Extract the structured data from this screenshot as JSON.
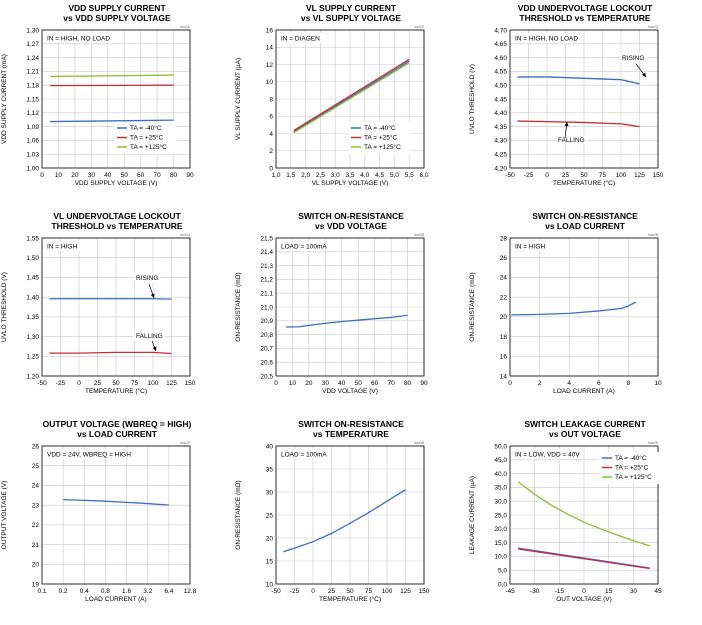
{
  "chart_data": [
    {
      "id": "toc01",
      "type": "line",
      "title": [
        "VDD SUPPLY CURRENT",
        "vs VDD SUPPLY VOLTAGE"
      ],
      "xlabel": "VDD SUPPLY VOLTAGE (V)",
      "ylabel": "VDD SUPPLY CURRENT (mA)",
      "xlim": [
        0,
        90
      ],
      "ylim": [
        1.0,
        1.3
      ],
      "xticks": [
        "0",
        "10",
        "20",
        "30",
        "40",
        "50",
        "60",
        "70",
        "80",
        "90"
      ],
      "yticks": [
        "1,00",
        "1,03",
        "1,06",
        "1,09",
        "1,12",
        "1,15",
        "1,18",
        "1,21",
        "1,24",
        "1,27",
        "1,30"
      ],
      "annotation": "IN = HIGH, NO LOAD",
      "legend": [
        "TA = -40°C",
        "TA = +25°C",
        "TA = +125°C"
      ],
      "series": [
        {
          "name": "TA = -40°C",
          "color": "#3a6fbf",
          "x": [
            5,
            80
          ],
          "y": [
            1.101,
            1.104
          ]
        },
        {
          "name": "TA = +25°C",
          "color": "#c62f3a",
          "x": [
            5,
            80
          ],
          "y": [
            1.179,
            1.18
          ]
        },
        {
          "name": "TA = +125°C",
          "color": "#8cbf2f",
          "x": [
            5,
            80
          ],
          "y": [
            1.199,
            1.202
          ]
        }
      ]
    },
    {
      "id": "toc02",
      "type": "line",
      "title": [
        "VL SUPPLY CURRENT",
        "vs VL SUPPLY VOLTAGE"
      ],
      "xlabel": "VL SUPPLY VOLTAGE (V)",
      "ylabel": "VL SUPPLY CURRENT (µA)",
      "xlim": [
        1.0,
        6.0
      ],
      "ylim": [
        0,
        16
      ],
      "xticks": [
        "1,0",
        "1,5",
        "2,0",
        "2,5",
        "3,0",
        "3,5",
        "4,0",
        "4,5",
        "5,0",
        "5,5",
        "6,0"
      ],
      "yticks": [
        "0",
        "2",
        "4",
        "6",
        "8",
        "10",
        "12",
        "14",
        "16"
      ],
      "annotation": "IN = DIAGEN",
      "legend": [
        "TA = -40°C",
        "TA = +25°C",
        "TA = +125°C"
      ],
      "series": [
        {
          "name": "TA = -40°C",
          "color": "#3a6fbf",
          "x": [
            1.6,
            5.5
          ],
          "y": [
            4.2,
            12.4
          ]
        },
        {
          "name": "TA = +25°C",
          "color": "#c62f3a",
          "x": [
            1.6,
            5.5
          ],
          "y": [
            4.35,
            12.6
          ]
        },
        {
          "name": "TA = +125°C",
          "color": "#8cbf2f",
          "x": [
            1.6,
            5.5
          ],
          "y": [
            4.1,
            12.2
          ]
        }
      ]
    },
    {
      "id": "toc03",
      "type": "line",
      "title": [
        "VDD UNDERVOLTAGE LOCKOUT",
        "THRESHOLD vs TEMPERATURE"
      ],
      "xlabel": "TEMPERATURE (°C)",
      "ylabel": "UVLO THRESHOLD (V)",
      "xlim": [
        -50,
        150
      ],
      "ylim": [
        4.2,
        4.7
      ],
      "xticks": [
        "-50",
        "-25",
        "0",
        "25",
        "50",
        "75",
        "100",
        "125",
        "150"
      ],
      "yticks": [
        "4,20",
        "4,25",
        "4,30",
        "4,35",
        "4,40",
        "4,45",
        "4,50",
        "4,55",
        "4,60",
        "4,65",
        "4,70"
      ],
      "annotation": "IN = HIGH, NO LOAD",
      "labels": [
        "RISING",
        "FALLING"
      ],
      "series": [
        {
          "name": "RISING",
          "color": "#3a6fbf",
          "x": [
            -40,
            0,
            50,
            100,
            125
          ],
          "y": [
            4.53,
            4.53,
            4.525,
            4.52,
            4.505
          ]
        },
        {
          "name": "FALLING",
          "color": "#c62f3a",
          "x": [
            -40,
            0,
            50,
            100,
            125
          ],
          "y": [
            4.37,
            4.368,
            4.365,
            4.36,
            4.35
          ]
        }
      ]
    },
    {
      "id": "toc04",
      "type": "line",
      "title": [
        "VL UNDERVOLTAGE LOCKOUT",
        "THRESHOLD vs TEMPERATURE"
      ],
      "xlabel": "TEMPERATURE (°C)",
      "ylabel": "UVLO THRESHOLD (V)",
      "xlim": [
        -50,
        150
      ],
      "ylim": [
        1.2,
        1.55
      ],
      "xticks": [
        "-50",
        "-25",
        "0",
        "25",
        "50",
        "75",
        "100",
        "125",
        "150"
      ],
      "yticks": [
        "1,20",
        "1,25",
        "1,30",
        "1,35",
        "1,40",
        "1,45",
        "1,50",
        "1,55"
      ],
      "annotation": "IN = HIGH",
      "labels": [
        "RISING",
        "FALLING"
      ],
      "series": [
        {
          "name": "RISING",
          "color": "#3a6fbf",
          "x": [
            -40,
            0,
            50,
            100,
            125
          ],
          "y": [
            1.396,
            1.396,
            1.396,
            1.396,
            1.395
          ]
        },
        {
          "name": "FALLING",
          "color": "#c62f3a",
          "x": [
            -40,
            0,
            50,
            100,
            125
          ],
          "y": [
            1.258,
            1.258,
            1.26,
            1.26,
            1.257
          ]
        }
      ]
    },
    {
      "id": "toc05",
      "type": "line",
      "title": [
        "SWITCH ON-RESISTANCE",
        "vs VDD VOLTAGE"
      ],
      "xlabel": "VDD VOLTAGE (V)",
      "ylabel": "ON-RESISTANCE (mΩ)",
      "xlim": [
        0,
        90
      ],
      "ylim": [
        20.5,
        21.5
      ],
      "xticks": [
        "0",
        "10",
        "20",
        "30",
        "40",
        "50",
        "60",
        "70",
        "80",
        "90"
      ],
      "yticks": [
        "20,5",
        "20,6",
        "20,7",
        "20,8",
        "20,9",
        "21,0",
        "21,1",
        "21,2",
        "21,3",
        "21,4",
        "21,5"
      ],
      "annotation": "LOAD = 100mA",
      "series": [
        {
          "name": "R_ON",
          "color": "#3a6fbf",
          "x": [
            6,
            14,
            25,
            40,
            55,
            70,
            80
          ],
          "y": [
            20.855,
            20.857,
            20.875,
            20.895,
            20.91,
            20.925,
            20.94
          ]
        }
      ]
    },
    {
      "id": "toc06",
      "type": "line",
      "title": [
        "SWITCH ON-RESISTANCE",
        "vs LOAD CURRENT"
      ],
      "xlabel": "LOAD CURRENT (A)",
      "ylabel": "ON-RESISTANCE (mΩ)",
      "xlim": [
        0,
        10
      ],
      "ylim": [
        14,
        28
      ],
      "xticks": [
        "0",
        "2",
        "4",
        "6",
        "8",
        "10"
      ],
      "yticks": [
        "14",
        "16",
        "18",
        "20",
        "22",
        "24",
        "26",
        "28"
      ],
      "annotation": "IN = HIGH",
      "series": [
        {
          "name": "R_ON",
          "color": "#3a6fbf",
          "x": [
            0.1,
            2,
            4,
            6,
            7.5,
            8.0,
            8.5
          ],
          "y": [
            20.2,
            20.25,
            20.35,
            20.6,
            20.85,
            21.1,
            21.5
          ]
        }
      ]
    },
    {
      "id": "toc07",
      "type": "line",
      "title": [
        "OUTPUT VOLTAGE (WBREQ = HIGH)",
        "vs LOAD CURRENT"
      ],
      "xlabel": "LOAD CURRENT (A)",
      "ylabel": "OUTPUT VOLTAGE (V)",
      "xscale": "log2",
      "xlim": [
        0.1,
        12.8
      ],
      "ylim": [
        19,
        26
      ],
      "xticks": [
        "0.1",
        "0.2",
        "0.4",
        "0.8",
        "1.6",
        "3.2",
        "6.4",
        "12.8"
      ],
      "yticks": [
        "19",
        "20",
        "21",
        "22",
        "23",
        "24",
        "25",
        "26"
      ],
      "annotation": "VDD = 24V, WBREQ = HIGH",
      "series": [
        {
          "name": "VOUT",
          "color": "#3a6fbf",
          "x": [
            0.2,
            0.4,
            0.8,
            1.6,
            3.2,
            6.4
          ],
          "y": [
            23.28,
            23.24,
            23.2,
            23.14,
            23.08,
            23.0
          ]
        }
      ]
    },
    {
      "id": "toc08",
      "type": "line",
      "title": [
        "SWITCH ON-RESISTANCE",
        "vs TEMPERATURE"
      ],
      "xlabel": "TEMPERATURE (°C)",
      "ylabel": "ON-RESISTANCE (mΩ)",
      "xlim": [
        -50,
        150
      ],
      "ylim": [
        10,
        40
      ],
      "xticks": [
        "-50",
        "-25",
        "0",
        "25",
        "50",
        "75",
        "100",
        "125",
        "150"
      ],
      "yticks": [
        "10",
        "15",
        "20",
        "25",
        "30",
        "35",
        "40"
      ],
      "annotation": "LOAD = 100mA",
      "series": [
        {
          "name": "R_ON",
          "color": "#3a6fbf",
          "x": [
            -40,
            -25,
            0,
            25,
            50,
            75,
            100,
            125
          ],
          "y": [
            17.0,
            17.8,
            19.2,
            21.0,
            23.2,
            25.5,
            28.0,
            30.5
          ]
        }
      ]
    },
    {
      "id": "toc09",
      "type": "line",
      "title": [
        "SWITCH LEAKAGE CURRENT",
        "vs OUT VOLTAGE"
      ],
      "xlabel": "OUT VOLTAGE (V)",
      "ylabel": "LEAKAGE CURRENT (µA)",
      "xlim": [
        -45,
        45
      ],
      "ylim": [
        0,
        50
      ],
      "xticks": [
        "-45",
        "-30",
        "-15",
        "0",
        "15",
        "30",
        "45"
      ],
      "yticks": [
        "0,0",
        "5,0",
        "10,0",
        "15,0",
        "20,0",
        "25,0",
        "30,0",
        "35,0",
        "40,0",
        "45,0",
        "50,0"
      ],
      "annotation": "IN = LOW, VDD = 40V",
      "legend": [
        "TA = -40°C",
        "TA = +25°C",
        "TA = +125°C"
      ],
      "series": [
        {
          "name": "TA = -40°C",
          "color": "#3a6fbf",
          "x": [
            -40,
            40
          ],
          "y": [
            13.0,
            5.8
          ]
        },
        {
          "name": "TA = +25°C",
          "color": "#c62f3a",
          "x": [
            -40,
            40
          ],
          "y": [
            12.7,
            5.6
          ]
        },
        {
          "name": "TA = +125°C",
          "color": "#8cbf2f",
          "x": [
            -40,
            -30,
            -20,
            -10,
            0,
            10,
            20,
            30,
            40
          ],
          "y": [
            37.0,
            32.5,
            28.6,
            25.3,
            22.4,
            20.0,
            17.8,
            15.7,
            13.8
          ]
        }
      ]
    }
  ]
}
